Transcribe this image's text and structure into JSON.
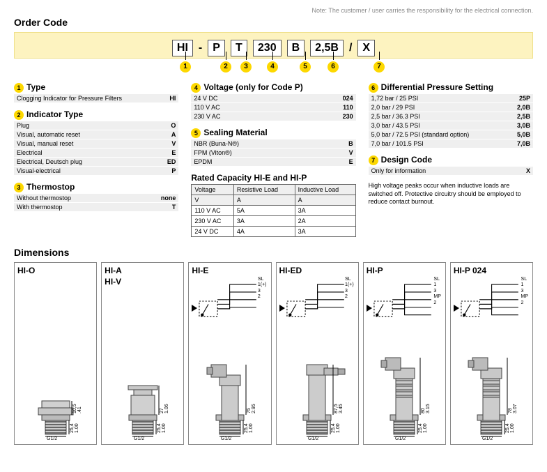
{
  "note_top": "Note: The customer / user carries the responsibility for the electrical connection.",
  "order_code_title": "Order Code",
  "code_parts": [
    "HI",
    "-",
    "P",
    "T",
    "230",
    "B",
    "2,5B",
    "/",
    "X"
  ],
  "code_nums": [
    "1",
    "2",
    "3",
    "4",
    "5",
    "6",
    "7"
  ],
  "groups": {
    "type": {
      "num": "1",
      "title": "Type",
      "rows": [
        [
          "Clogging Indicator for Pressure Filters",
          "HI"
        ]
      ]
    },
    "indicator": {
      "num": "2",
      "title": "Indicator Type",
      "rows": [
        [
          "Plug",
          "O"
        ],
        [
          "Visual, automatic reset",
          "A"
        ],
        [
          "Visual, manual reset",
          "V"
        ],
        [
          "Electrical",
          "E"
        ],
        [
          "Electrical, Deutsch plug",
          "ED"
        ],
        [
          "Visual-electrical",
          "P"
        ]
      ]
    },
    "thermo": {
      "num": "3",
      "title": "Thermostop",
      "rows": [
        [
          "Without thermostop",
          "none"
        ],
        [
          "With thermostop",
          "T"
        ]
      ]
    },
    "voltage": {
      "num": "4",
      "title": "Voltage (only for Code P)",
      "rows": [
        [
          "24 V DC",
          "024"
        ],
        [
          "110 V AC",
          "110"
        ],
        [
          "230 V  AC",
          "230"
        ]
      ]
    },
    "sealing": {
      "num": "5",
      "title": "Sealing Material",
      "rows": [
        [
          "NBR (Buna-N®)",
          "B"
        ],
        [
          "FPM (Viton®)",
          "V"
        ],
        [
          "EPDM",
          "E"
        ]
      ]
    },
    "diff": {
      "num": "6",
      "title": "Differential Pressure Setting",
      "rows": [
        [
          "1,72 bar / 25 PSI",
          "25P"
        ],
        [
          "2,0 bar / 29 PSI",
          "2,0B"
        ],
        [
          "2,5 bar / 36.3 PSI",
          "2,5B"
        ],
        [
          "3,0 bar / 43.5 PSI",
          "3,0B"
        ],
        [
          "5,0 bar / 72.5 PSI (standard option)",
          "5,0B"
        ],
        [
          "7,0 bar / 101.5 PSI",
          "7,0B"
        ]
      ]
    },
    "design": {
      "num": "7",
      "title": "Design Code",
      "rows": [
        [
          "Only for information",
          "X"
        ]
      ]
    }
  },
  "rated_title": "Rated Capacity HI-E and HI-P",
  "rated_headers": [
    "Voltage",
    "Resistive Load",
    "Inductive Load"
  ],
  "rated_sub": [
    "V",
    "A",
    "A"
  ],
  "rated_rows": [
    [
      "110 V AC",
      "5A",
      "3A"
    ],
    [
      "230 V AC",
      "3A",
      "2A"
    ],
    [
      "24 V DC",
      "4A",
      "3A"
    ]
  ],
  "hv_note": "High voltage peaks occur when inductive loads are switched off. Protective circuitry should be employed to reduce contact burnout.",
  "dims_title": "Dimensions",
  "dims": [
    {
      "labels": [
        "HI-O"
      ],
      "schem": null,
      "measures": {
        "h1": [
          "10,5",
          ".41"
        ],
        "h2": [
          "25,4",
          "1.00"
        ],
        "base": "G1/2"
      }
    },
    {
      "labels": [
        "HI-A",
        "HI-V"
      ],
      "schem": null,
      "measures": {
        "h1": [
          "27",
          "1.06"
        ],
        "h2": [
          "25,4",
          "1.00"
        ],
        "base": "G1/2"
      }
    },
    {
      "labels": [
        "HI-E"
      ],
      "schem": [
        "SL",
        "1(+)",
        "3",
        "2"
      ],
      "measures": {
        "h1": [
          "75",
          "2.95"
        ],
        "h2": [
          "25,4",
          "1.00"
        ],
        "base": "G1/2"
      }
    },
    {
      "labels": [
        "HI-ED"
      ],
      "schem": [
        "SL",
        "1(+)",
        "3",
        "2"
      ],
      "measures": {
        "h1": [
          "87,5",
          "3.45"
        ],
        "h2": [
          "25,4",
          "1.00"
        ],
        "base": "G1/2"
      }
    },
    {
      "labels": [
        "HI-P"
      ],
      "schem": [
        "SL",
        "1",
        "3",
        "MP",
        "2"
      ],
      "measures": {
        "h1": [
          "80",
          "3.15"
        ],
        "h2": [
          "25,4",
          "1.00"
        ],
        "base": "G1/2"
      }
    },
    {
      "labels": [
        "HI-P 024"
      ],
      "schem": [
        "SL",
        "1",
        "3",
        "MP",
        "2"
      ],
      "measures": {
        "h1": [
          "78",
          "3.07"
        ],
        "h2": [
          "25,4",
          "1.00"
        ],
        "base": "G1/2"
      }
    }
  ],
  "colors": {
    "band_bg": "#fdf3c0",
    "num_bg": "#fdd800",
    "row_bg": "#efefef"
  }
}
